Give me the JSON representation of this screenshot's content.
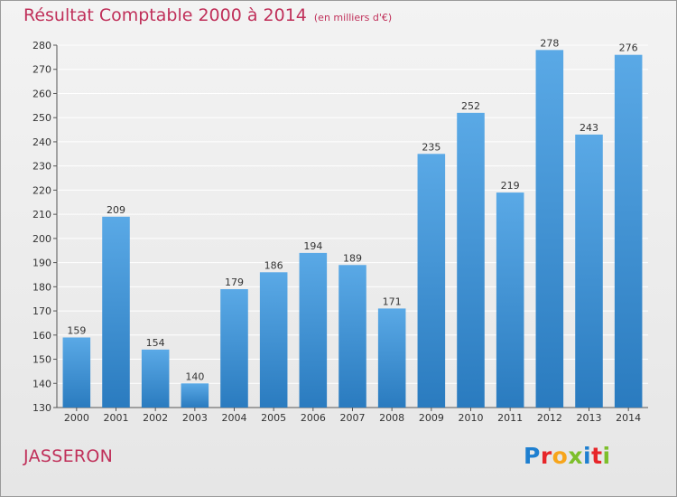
{
  "title": "Résultat Comptable 2000 à 2014",
  "unit_note": "(en milliers d'€)",
  "commune": "JASSERON",
  "logo": {
    "letters": [
      {
        "ch": "P",
        "color": "#1e7fd0"
      },
      {
        "ch": "r",
        "color": "#e7262a"
      },
      {
        "ch": "o",
        "color": "#f7a51b"
      },
      {
        "ch": "x",
        "color": "#7dbf2b"
      },
      {
        "ch": "i",
        "color": "#1e7fd0"
      },
      {
        "ch": "t",
        "color": "#e7262a"
      },
      {
        "ch": "i",
        "color": "#7dbf2b"
      }
    ]
  },
  "colors": {
    "title": "#c0305a",
    "bar_top": "#5aa9e6",
    "bar_bottom": "#2a7bbf",
    "grid": "#ffffff"
  },
  "chart_data": {
    "type": "bar",
    "categories": [
      "2000",
      "2001",
      "2002",
      "2003",
      "2004",
      "2005",
      "2006",
      "2007",
      "2008",
      "2009",
      "2010",
      "2011",
      "2012",
      "2013",
      "2014"
    ],
    "values": [
      159,
      209,
      154,
      140,
      179,
      186,
      194,
      189,
      171,
      235,
      252,
      219,
      278,
      243,
      276
    ],
    "title": "Résultat Comptable 2000 à 2014",
    "xlabel": "",
    "ylabel": "",
    "ylim": [
      130,
      280
    ],
    "yticks": [
      130,
      140,
      150,
      160,
      170,
      180,
      190,
      200,
      210,
      220,
      230,
      240,
      250,
      260,
      270,
      280
    ],
    "grid": true,
    "data_labels": true
  }
}
